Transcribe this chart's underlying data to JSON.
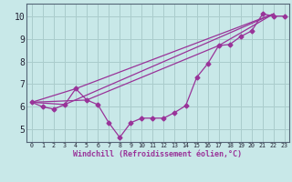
{
  "xlabel": "Windchill (Refroidissement éolien,°C)",
  "bg_color": "#c8e8e8",
  "grid_color": "#aacccc",
  "line_color": "#993399",
  "spine_color": "#556677",
  "xlim_min": -0.5,
  "xlim_max": 23.4,
  "ylim_min": 4.45,
  "ylim_max": 10.55,
  "xticks": [
    0,
    1,
    2,
    3,
    4,
    5,
    6,
    7,
    8,
    9,
    10,
    11,
    12,
    13,
    14,
    15,
    16,
    17,
    18,
    19,
    20,
    21,
    22,
    23
  ],
  "yticks": [
    5,
    6,
    7,
    8,
    9,
    10
  ],
  "line1_x": [
    0,
    1,
    2,
    3,
    4,
    5,
    6,
    7,
    8,
    9,
    10,
    11,
    12,
    13,
    14,
    15,
    16,
    17,
    18,
    19,
    20,
    21,
    22,
    23
  ],
  "line1_y": [
    6.2,
    6.0,
    5.9,
    6.1,
    6.8,
    6.3,
    6.1,
    5.3,
    4.65,
    5.3,
    5.5,
    5.5,
    5.5,
    5.75,
    6.05,
    7.3,
    7.9,
    8.7,
    8.75,
    9.1,
    9.35,
    10.1,
    10.0,
    10.0
  ],
  "line2_x": [
    0,
    4,
    22
  ],
  "line2_y": [
    6.2,
    6.8,
    10.1
  ],
  "line3_x": [
    0,
    5,
    17,
    22
  ],
  "line3_y": [
    6.2,
    6.3,
    8.7,
    10.1
  ],
  "line4_x": [
    0,
    3,
    22
  ],
  "line4_y": [
    6.2,
    6.1,
    10.1
  ],
  "marker_symbol": "D",
  "marker_size": 2.5,
  "line_width": 0.9,
  "tick_fontsize_x": 4.8,
  "tick_fontsize_y": 7.0,
  "xlabel_fontsize": 6.0
}
